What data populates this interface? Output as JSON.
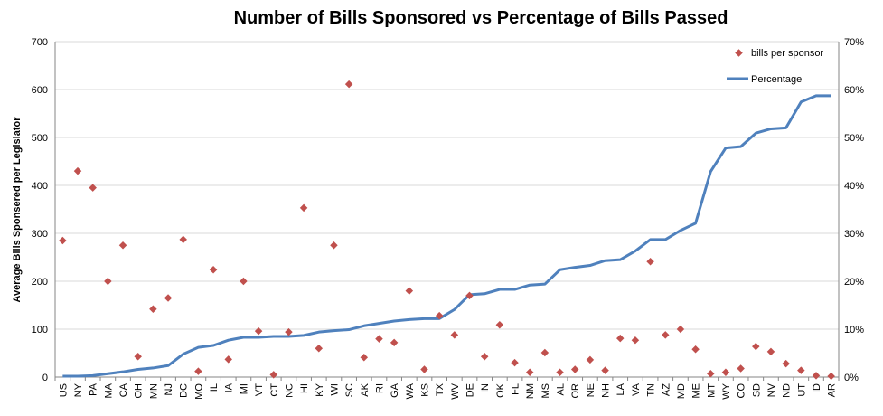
{
  "chart_data": {
    "type": "line+scatter",
    "title": "Number of Bills Sponsored vs Percentage of Bills Passed",
    "ylabel_left": "Average Bills Sponsered per Legislator",
    "ylim_left": [
      0,
      700
    ],
    "yticks_left": [
      "0",
      "100",
      "200",
      "300",
      "400",
      "500",
      "600",
      "700"
    ],
    "ylim_right": [
      0,
      70
    ],
    "yticks_right": [
      "0%",
      "10%",
      "20%",
      "30%",
      "40%",
      "50%",
      "60%",
      "70%"
    ],
    "grid": "horizontal",
    "legend_position": "top-right",
    "categories": [
      "US",
      "NY",
      "PA",
      "MA",
      "CA",
      "OH",
      "MN",
      "NJ",
      "DC",
      "MO",
      "IL",
      "IA",
      "MI",
      "VT",
      "CT",
      "NC",
      "HI",
      "KY",
      "WI",
      "SC",
      "AK",
      "RI",
      "GA",
      "WA",
      "KS",
      "TX",
      "WV",
      "DE",
      "IN",
      "OK",
      "FL",
      "NM",
      "MS",
      "AL",
      "OR",
      "NE",
      "NH",
      "LA",
      "VA",
      "TN",
      "AZ",
      "MD",
      "ME",
      "MT",
      "WY",
      "CO",
      "SD",
      "NV",
      "ND",
      "UT",
      "ID",
      "AR"
    ],
    "series": [
      {
        "name": "bills per sponsor",
        "kind": "scatter",
        "axis": "left",
        "color": "#C0504D",
        "values": [
          285,
          430,
          395,
          200,
          275,
          43,
          142,
          165,
          287,
          12,
          224,
          37,
          200,
          96,
          5,
          94,
          353,
          60,
          275,
          611,
          41,
          80,
          72,
          180,
          16,
          128,
          88,
          170,
          43,
          109,
          30,
          10,
          51,
          10,
          16,
          36,
          14,
          81,
          77,
          241,
          88,
          100,
          58,
          7,
          10,
          18,
          64,
          53,
          28,
          14,
          3,
          2
        ]
      },
      {
        "name": "Percentage",
        "kind": "line",
        "axis": "right",
        "color": "#4F81BD",
        "values": [
          0.2,
          0.2,
          0.3,
          0.7,
          1.1,
          1.6,
          1.9,
          2.4,
          4.8,
          6.2,
          6.6,
          7.7,
          8.3,
          8.3,
          8.5,
          8.5,
          8.7,
          9.4,
          9.7,
          9.9,
          10.7,
          11.2,
          11.7,
          12.0,
          12.2,
          12.2,
          14.1,
          17.2,
          17.4,
          18.3,
          18.3,
          19.2,
          19.4,
          22.4,
          22.9,
          23.3,
          24.3,
          24.5,
          26.3,
          28.7,
          28.7,
          30.6,
          32.1,
          42.9,
          47.8,
          48.1,
          50.9,
          51.8,
          52.0,
          57.4,
          58.7,
          58.7
        ]
      }
    ]
  }
}
